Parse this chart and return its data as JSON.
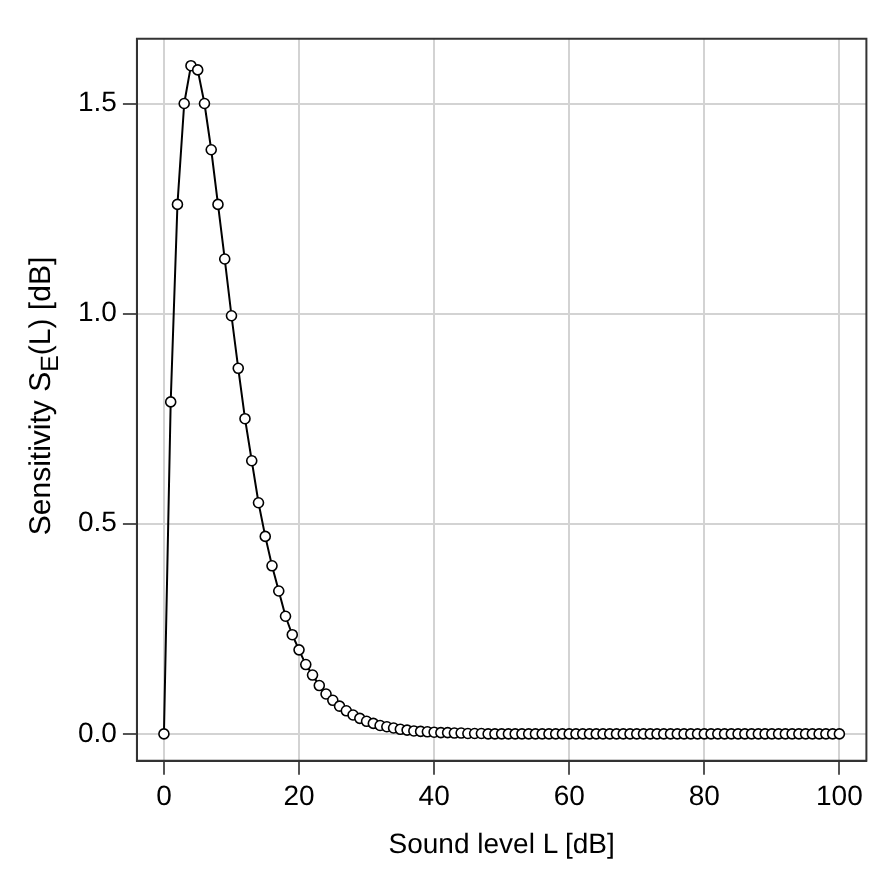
{
  "chart_data": {
    "type": "line",
    "xlabel": "Sound level L [dB]",
    "ylabel": "Sensitivity S$_{E}$(L)  [dB]",
    "x": [
      0,
      1,
      2,
      3,
      4,
      5,
      6,
      7,
      8,
      9,
      10,
      11,
      12,
      13,
      14,
      15,
      16,
      17,
      18,
      19,
      20,
      21,
      22,
      23,
      24,
      25,
      26,
      27,
      28,
      29,
      30,
      31,
      32,
      33,
      34,
      35,
      36,
      37,
      38,
      39,
      40,
      41,
      42,
      43,
      44,
      45,
      46,
      47,
      48,
      49,
      50,
      51,
      52,
      53,
      54,
      55,
      56,
      57,
      58,
      59,
      60,
      61,
      62,
      63,
      64,
      65,
      66,
      67,
      68,
      69,
      70,
      71,
      72,
      73,
      74,
      75,
      76,
      77,
      78,
      79,
      80,
      81,
      82,
      83,
      84,
      85,
      86,
      87,
      88,
      89,
      90,
      91,
      92,
      93,
      94,
      95,
      96,
      97,
      98,
      99,
      100
    ],
    "series": [
      {
        "color": "#000000",
        "values": [
          0,
          0.79,
          1.26,
          1.5,
          1.59,
          1.58,
          1.5,
          1.39,
          1.26,
          1.13,
          0.995,
          0.87,
          0.75,
          0.65,
          0.55,
          0.47,
          0.4,
          0.34,
          0.28,
          0.236,
          0.2,
          0.165,
          0.14,
          0.115,
          0.095,
          0.08,
          0.066,
          0.055,
          0.045,
          0.037,
          0.03,
          0.025,
          0.02,
          0.017,
          0.014,
          0.011,
          0.009,
          0.007,
          0.006,
          0.005,
          0.004,
          0.003,
          0.003,
          0.002,
          0.002,
          0.001,
          0.001,
          0.001,
          0,
          0,
          0,
          0,
          0,
          0,
          0,
          0,
          0,
          0,
          0,
          0,
          0,
          0,
          0,
          0,
          0,
          0,
          0,
          0,
          0,
          0,
          0,
          0,
          0,
          0,
          0,
          0,
          0,
          0,
          0,
          0,
          0,
          0,
          0,
          0,
          0,
          0,
          0,
          0,
          0,
          0,
          0,
          0,
          0,
          0,
          0,
          0,
          0,
          0,
          0,
          0,
          0
        ]
      }
    ],
    "xlim": [
      -4,
      104
    ],
    "xticks": [
      0,
      20,
      40,
      60,
      80,
      100
    ],
    "ylim": [
      -0.064,
      1.654
    ],
    "yticks": [
      {
        "value": 0,
        "label": "0.0"
      },
      {
        "value": 0.5,
        "label": "0.5"
      },
      {
        "value": 1,
        "label": "1.0"
      },
      {
        "value": 1.5,
        "label": "1.5"
      }
    ],
    "grid": true,
    "marker": "circle",
    "line_style": "solid",
    "legend": false
  }
}
